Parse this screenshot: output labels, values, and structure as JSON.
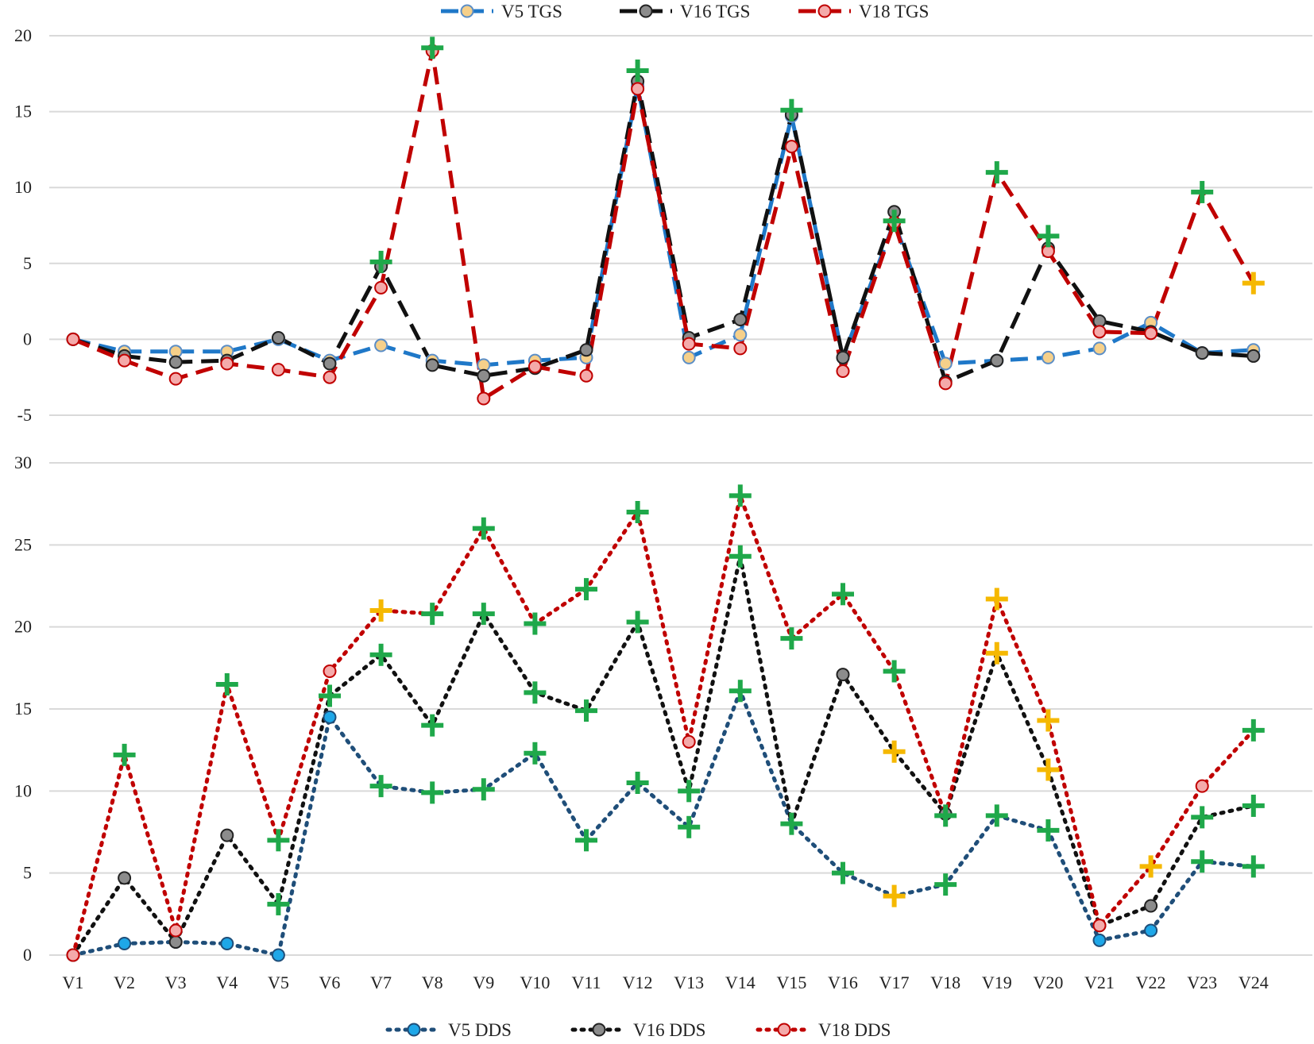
{
  "chart_data": [
    {
      "type": "line",
      "title": "",
      "xlabel": "",
      "ylabel": "",
      "ylim": [
        -5,
        20
      ],
      "yticks": [
        -5,
        0,
        5,
        10,
        15,
        20
      ],
      "grid": true,
      "legend_position": "top",
      "categories": [
        "V1",
        "V2",
        "V3",
        "V4",
        "V5",
        "V6",
        "V7",
        "V8",
        "V9",
        "V10",
        "V11",
        "V12",
        "V13",
        "V14",
        "V15",
        "V16",
        "V17",
        "V18",
        "V19",
        "V20",
        "V21",
        "V22",
        "V23",
        "V24"
      ],
      "series": [
        {
          "name": "V5 TGS",
          "line_color": "#1f78c8",
          "marker_fill": "#f6d08a",
          "marker_stroke": "#5b8ec7",
          "dash": "dashed",
          "values": [
            0,
            -0.8,
            -0.8,
            -0.8,
            0,
            -1.4,
            -0.4,
            -1.4,
            -1.7,
            -1.4,
            -1.2,
            16.7,
            -1.2,
            0.3,
            14.7,
            -1.2,
            7.7,
            -1.6,
            -1.4,
            -1.2,
            -0.6,
            1.1,
            -0.9,
            -0.7
          ]
        },
        {
          "name": "V16 TGS",
          "line_color": "#111111",
          "marker_fill": "#8c8c8c",
          "marker_stroke": "#222222",
          "dash": "dashed",
          "values": [
            0,
            -1.1,
            -1.5,
            -1.4,
            0.1,
            -1.6,
            4.8,
            -1.7,
            -2.4,
            -1.9,
            -0.7,
            17.0,
            0.1,
            1.3,
            14.8,
            -1.2,
            8.4,
            -2.8,
            -1.4,
            6.0,
            1.2,
            0.5,
            -0.9,
            -1.1
          ]
        },
        {
          "name": "V18 TGS",
          "line_color": "#c00000",
          "marker_fill": "#f4aaaa",
          "marker_stroke": "#c00000",
          "dash": "dashed",
          "values": [
            0,
            -1.4,
            -2.6,
            -1.6,
            -2.0,
            -2.5,
            3.4,
            19.0,
            -3.9,
            -1.8,
            -2.4,
            16.5,
            -0.3,
            -0.6,
            12.7,
            -2.1,
            7.7,
            -2.9,
            11.0,
            5.8,
            0.5,
            0.4,
            9.7,
            3.7
          ]
        }
      ],
      "significance_markers": [
        {
          "category": "V7",
          "value": 5.1,
          "color": "green"
        },
        {
          "category": "V8",
          "value": 19.2,
          "color": "green"
        },
        {
          "category": "V12",
          "value": 17.7,
          "color": "green"
        },
        {
          "category": "V15",
          "value": 15.1,
          "color": "green"
        },
        {
          "category": "V17",
          "value": 7.8,
          "color": "green"
        },
        {
          "category": "V19",
          "value": 11.0,
          "color": "green"
        },
        {
          "category": "V20",
          "value": 6.8,
          "color": "green"
        },
        {
          "category": "V23",
          "value": 9.7,
          "color": "green"
        },
        {
          "category": "V24",
          "value": 3.7,
          "color": "gold"
        }
      ]
    },
    {
      "type": "line",
      "title": "",
      "xlabel": "",
      "ylabel": "",
      "ylim": [
        0,
        30
      ],
      "yticks": [
        0,
        5,
        10,
        15,
        20,
        25,
        30
      ],
      "grid": true,
      "legend_position": "bottom",
      "categories": [
        "V1",
        "V2",
        "V3",
        "V4",
        "V5",
        "V6",
        "V7",
        "V8",
        "V9",
        "V10",
        "V11",
        "V12",
        "V13",
        "V14",
        "V15",
        "V16",
        "V17",
        "V18",
        "V19",
        "V20",
        "V21",
        "V22",
        "V23",
        "V24"
      ],
      "series": [
        {
          "name": "V5 DDS",
          "line_color": "#1f4e79",
          "marker_fill": "#1ea7e8",
          "marker_stroke": "#1f4e79",
          "dash": "dotted",
          "values": [
            0,
            0.7,
            0.8,
            0.7,
            0,
            14.5,
            10.3,
            9.9,
            10.1,
            12.3,
            7.0,
            10.5,
            7.8,
            16.1,
            8.0,
            5.0,
            3.6,
            4.3,
            8.5,
            7.6,
            0.9,
            1.5,
            5.7,
            5.4
          ]
        },
        {
          "name": "V16 DDS",
          "line_color": "#111111",
          "marker_fill": "#8c8c8c",
          "marker_stroke": "#222222",
          "dash": "dotted",
          "values": [
            0,
            4.7,
            0.8,
            7.3,
            3.1,
            15.8,
            18.3,
            14.0,
            20.8,
            16.0,
            14.9,
            20.3,
            10.0,
            24.3,
            8.0,
            17.1,
            12.4,
            8.6,
            18.4,
            11.3,
            1.8,
            3.0,
            8.4,
            9.1
          ]
        },
        {
          "name": "V18 DDS",
          "line_color": "#c00000",
          "marker_fill": "#f4aaaa",
          "marker_stroke": "#c00000",
          "dash": "dotted",
          "values": [
            0,
            12.2,
            1.5,
            16.5,
            7.0,
            17.3,
            21.0,
            20.8,
            26.0,
            20.2,
            22.3,
            27.0,
            13.0,
            28.0,
            19.3,
            22.0,
            17.3,
            8.5,
            21.7,
            14.3,
            1.8,
            5.4,
            10.3,
            13.7
          ]
        }
      ],
      "significance_markers": [
        {
          "category": "V2",
          "value": 12.2,
          "color": "green"
        },
        {
          "category": "V4",
          "value": 16.5,
          "color": "green"
        },
        {
          "category": "V5",
          "value": 7.0,
          "color": "green"
        },
        {
          "category": "V5",
          "value": 3.1,
          "color": "green"
        },
        {
          "category": "V6",
          "value": 15.8,
          "color": "green"
        },
        {
          "category": "V7",
          "value": 21.0,
          "color": "gold"
        },
        {
          "category": "V7",
          "value": 18.3,
          "color": "green"
        },
        {
          "category": "V7",
          "value": 10.3,
          "color": "green"
        },
        {
          "category": "V8",
          "value": 20.8,
          "color": "green"
        },
        {
          "category": "V8",
          "value": 14.0,
          "color": "green"
        },
        {
          "category": "V8",
          "value": 9.9,
          "color": "green"
        },
        {
          "category": "V9",
          "value": 26.0,
          "color": "green"
        },
        {
          "category": "V9",
          "value": 20.8,
          "color": "green"
        },
        {
          "category": "V9",
          "value": 10.1,
          "color": "green"
        },
        {
          "category": "V10",
          "value": 20.2,
          "color": "green"
        },
        {
          "category": "V10",
          "value": 16.0,
          "color": "green"
        },
        {
          "category": "V10",
          "value": 12.3,
          "color": "green"
        },
        {
          "category": "V11",
          "value": 22.3,
          "color": "green"
        },
        {
          "category": "V11",
          "value": 14.9,
          "color": "green"
        },
        {
          "category": "V11",
          "value": 7.0,
          "color": "green"
        },
        {
          "category": "V12",
          "value": 27.0,
          "color": "green"
        },
        {
          "category": "V12",
          "value": 20.3,
          "color": "green"
        },
        {
          "category": "V12",
          "value": 10.5,
          "color": "green"
        },
        {
          "category": "V13",
          "value": 10.0,
          "color": "green"
        },
        {
          "category": "V13",
          "value": 7.8,
          "color": "green"
        },
        {
          "category": "V14",
          "value": 28.0,
          "color": "green"
        },
        {
          "category": "V14",
          "value": 24.3,
          "color": "green"
        },
        {
          "category": "V14",
          "value": 16.1,
          "color": "green"
        },
        {
          "category": "V15",
          "value": 19.3,
          "color": "green"
        },
        {
          "category": "V15",
          "value": 8.0,
          "color": "green"
        },
        {
          "category": "V16",
          "value": 22.0,
          "color": "green"
        },
        {
          "category": "V16",
          "value": 5.0,
          "color": "green"
        },
        {
          "category": "V17",
          "value": 17.3,
          "color": "green"
        },
        {
          "category": "V17",
          "value": 12.4,
          "color": "gold"
        },
        {
          "category": "V17",
          "value": 3.6,
          "color": "gold"
        },
        {
          "category": "V18",
          "value": 8.5,
          "color": "green"
        },
        {
          "category": "V18",
          "value": 4.3,
          "color": "green"
        },
        {
          "category": "V19",
          "value": 21.7,
          "color": "gold"
        },
        {
          "category": "V19",
          "value": 18.4,
          "color": "gold"
        },
        {
          "category": "V19",
          "value": 8.5,
          "color": "green"
        },
        {
          "category": "V20",
          "value": 14.3,
          "color": "gold"
        },
        {
          "category": "V20",
          "value": 11.3,
          "color": "gold"
        },
        {
          "category": "V20",
          "value": 7.6,
          "color": "green"
        },
        {
          "category": "V22",
          "value": 5.4,
          "color": "gold"
        },
        {
          "category": "V23",
          "value": 8.4,
          "color": "green"
        },
        {
          "category": "V23",
          "value": 5.7,
          "color": "green"
        },
        {
          "category": "V24",
          "value": 13.7,
          "color": "green"
        },
        {
          "category": "V24",
          "value": 9.1,
          "color": "green"
        },
        {
          "category": "V24",
          "value": 5.4,
          "color": "green"
        }
      ]
    }
  ],
  "colors": {
    "grid": "#d9d9d9",
    "plus_green": "#1fa84a",
    "plus_gold": "#f5b800"
  }
}
